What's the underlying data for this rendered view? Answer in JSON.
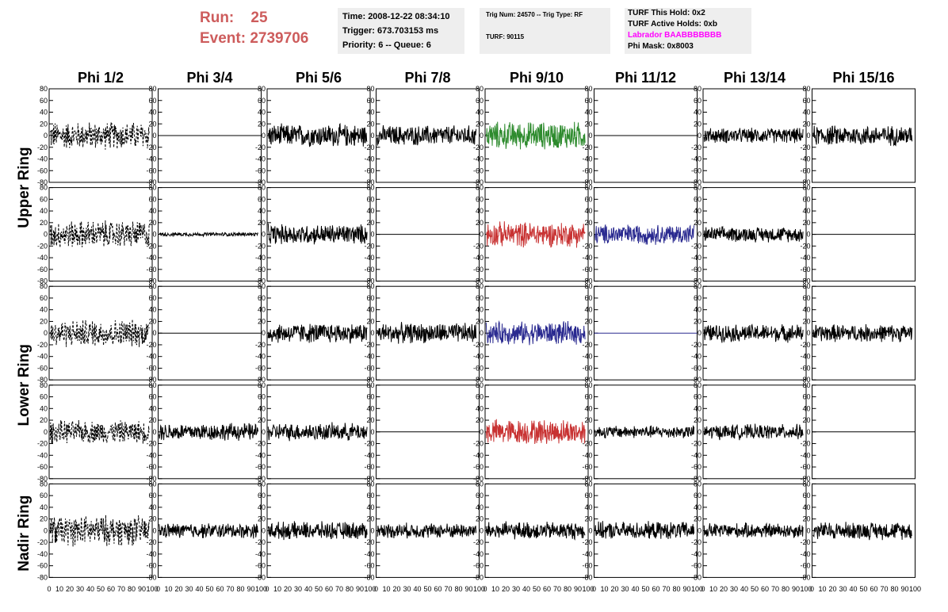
{
  "header": {
    "run_label": "Run:",
    "run_value": "25",
    "event_label": "Event:",
    "event_value": "2739706",
    "time": "Time: 2008-12-22 08:34:10",
    "trigger": "Trigger: 673.703153 ms",
    "priority": "Priority: 6 -- Queue: 6",
    "trig_num": "Trig Num: 24570 -- Trig Type: RF",
    "turf": "TURF: 90115",
    "turf_this_hold": "TURF This Hold: 0x2",
    "turf_active_holds": "TURF Active Holds: 0xb",
    "labrador": "Labrador BAABBBBBBB",
    "phi_mask": "Phi Mask: 0x8003"
  },
  "chart_data": {
    "type": "line",
    "columns": [
      "Phi 1/2",
      "Phi 3/4",
      "Phi 5/6",
      "Phi 7/8",
      "Phi 9/10",
      "Phi 11/12",
      "Phi 13/14",
      "Phi 15/16"
    ],
    "ring_labels": [
      "Upper Ring",
      "Lower Ring",
      "Nadir Ring"
    ],
    "rows_per_ring": [
      2,
      2,
      1
    ],
    "ylim": [
      -80,
      80
    ],
    "y_ticks": [
      -80,
      -60,
      -40,
      -20,
      0,
      20,
      40,
      60,
      80
    ],
    "xlim": [
      0,
      100
    ],
    "x_ticks": [
      0,
      10,
      20,
      30,
      40,
      50,
      60,
      70,
      80,
      90,
      100
    ],
    "x_tick_labels": [
      "0",
      "10",
      "20",
      "30",
      "40",
      "50",
      "60",
      "70",
      "80",
      "90",
      "100"
    ],
    "colors": {
      "black": "#000000",
      "green": "#2e8b2e",
      "red": "#c83232",
      "blue": "#2a2a90"
    },
    "traces": [
      [
        {
          "kind": "noise",
          "amp": 22,
          "style": "dashed",
          "color": "black"
        },
        {
          "kind": "flat",
          "color": "black"
        },
        {
          "kind": "noise",
          "amp": 18,
          "color": "black"
        },
        {
          "kind": "noise",
          "amp": 16,
          "color": "black"
        },
        {
          "kind": "noise",
          "amp": 22,
          "color": "green"
        },
        {
          "kind": "flat",
          "color": "black"
        },
        {
          "kind": "noise",
          "amp": 12,
          "color": "black"
        },
        {
          "kind": "noise",
          "amp": 16,
          "color": "black"
        }
      ],
      [
        {
          "kind": "noise",
          "amp": 22,
          "style": "dashed",
          "color": "black"
        },
        {
          "kind": "noise",
          "amp": 3,
          "color": "black"
        },
        {
          "kind": "noise",
          "amp": 16,
          "color": "black"
        },
        {
          "kind": "flat",
          "color": "black"
        },
        {
          "kind": "noise",
          "amp": 20,
          "color": "red"
        },
        {
          "kind": "noise",
          "amp": 16,
          "color": "blue"
        },
        {
          "kind": "noise",
          "amp": 12,
          "color": "black"
        },
        {
          "kind": "flat",
          "color": "black"
        }
      ],
      [
        {
          "kind": "noise",
          "amp": 22,
          "style": "dashed",
          "color": "black"
        },
        {
          "kind": "flat",
          "color": "black"
        },
        {
          "kind": "noise",
          "amp": 16,
          "color": "black"
        },
        {
          "kind": "noise",
          "amp": 16,
          "color": "black"
        },
        {
          "kind": "noise",
          "amp": 18,
          "color": "blue"
        },
        {
          "kind": "flat",
          "color": "blue"
        },
        {
          "kind": "noise",
          "amp": 14,
          "color": "black"
        },
        {
          "kind": "noise",
          "amp": 14,
          "color": "black"
        }
      ],
      [
        {
          "kind": "noise",
          "amp": 18,
          "style": "dashed",
          "color": "black"
        },
        {
          "kind": "noise",
          "amp": 14,
          "color": "black"
        },
        {
          "kind": "noise",
          "amp": 14,
          "color": "black"
        },
        {
          "kind": "flat",
          "color": "black"
        },
        {
          "kind": "noise",
          "amp": 20,
          "color": "red"
        },
        {
          "kind": "noise",
          "amp": 10,
          "color": "black"
        },
        {
          "kind": "noise",
          "amp": 12,
          "color": "black"
        },
        {
          "kind": "flat",
          "color": "black"
        }
      ],
      [
        {
          "kind": "noise",
          "amp": 24,
          "style": "dashed",
          "color": "black"
        },
        {
          "kind": "noise",
          "amp": 12,
          "color": "black"
        },
        {
          "kind": "noise",
          "amp": 14,
          "color": "black"
        },
        {
          "kind": "noise",
          "amp": 12,
          "color": "black"
        },
        {
          "kind": "noise",
          "amp": 14,
          "color": "black"
        },
        {
          "kind": "noise",
          "amp": 14,
          "color": "black"
        },
        {
          "kind": "noise",
          "amp": 12,
          "color": "black"
        },
        {
          "kind": "noise",
          "amp": 14,
          "color": "black"
        }
      ]
    ]
  }
}
